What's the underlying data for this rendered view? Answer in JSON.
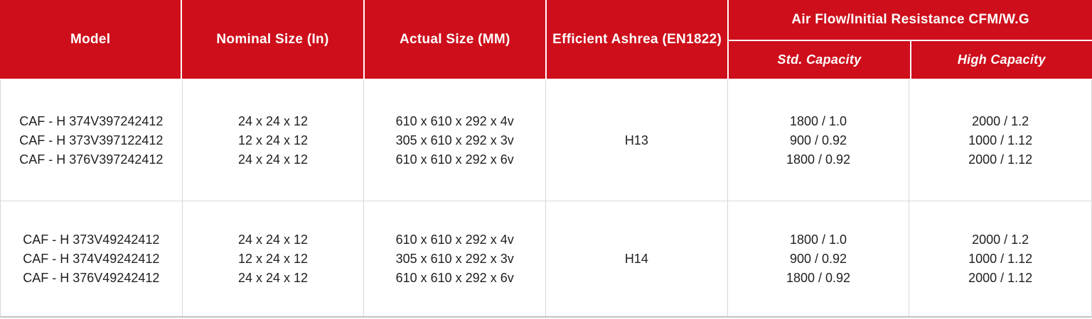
{
  "header": {
    "model": "Model",
    "nominal": "Nominal Size (In)",
    "actual": "Actual Size (MM)",
    "efficiency": "Efficient Ashrea (EN1822)",
    "airflow_group": "Air Flow/Initial Resistance CFM/W.G",
    "std_capacity": "Std. Capacity",
    "high_capacity": "High Capacity"
  },
  "blocks": [
    {
      "model": [
        "CAF - H 374V397242412",
        "CAF - H 373V397122412",
        "CAF - H 376V397242412"
      ],
      "nominal": [
        "24 x 24 x 12",
        "12 x 24 x 12",
        "24 x 24 x 12"
      ],
      "actual": [
        "610 x 610 x 292 x 4v",
        "305 x 610 x 292 x 3v",
        "610 x 610 x 292 x 6v"
      ],
      "efficiency": "H13",
      "std_capacity": [
        "1800 / 1.0",
        "900 / 0.92",
        "1800 / 0.92"
      ],
      "high_capacity": [
        "2000 / 1.2",
        "1000 / 1.12",
        "2000 / 1.12"
      ]
    },
    {
      "model": [
        "CAF - H 373V49242412",
        "CAF - H 374V49242412",
        "CAF - H 376V49242412"
      ],
      "nominal": [
        "24 x 24 x 12",
        "12 x 24 x 12",
        "24 x 24 x 12"
      ],
      "actual": [
        "610 x 610 x 292 x 4v",
        "305 x 610 x 292 x 3v",
        "610 x 610 x 292 x 6v"
      ],
      "efficiency": "H14",
      "std_capacity": [
        "1800 / 1.0",
        "900 / 0.92",
        "1800 / 0.92"
      ],
      "high_capacity": [
        "2000 / 1.2",
        "1000 / 1.12",
        "2000 / 1.12"
      ]
    }
  ],
  "colors": {
    "header_red": "#CE0E1B",
    "header_text": "#ffffff",
    "grid_line": "#d6d6d6",
    "body_text": "#1f1f1f"
  }
}
